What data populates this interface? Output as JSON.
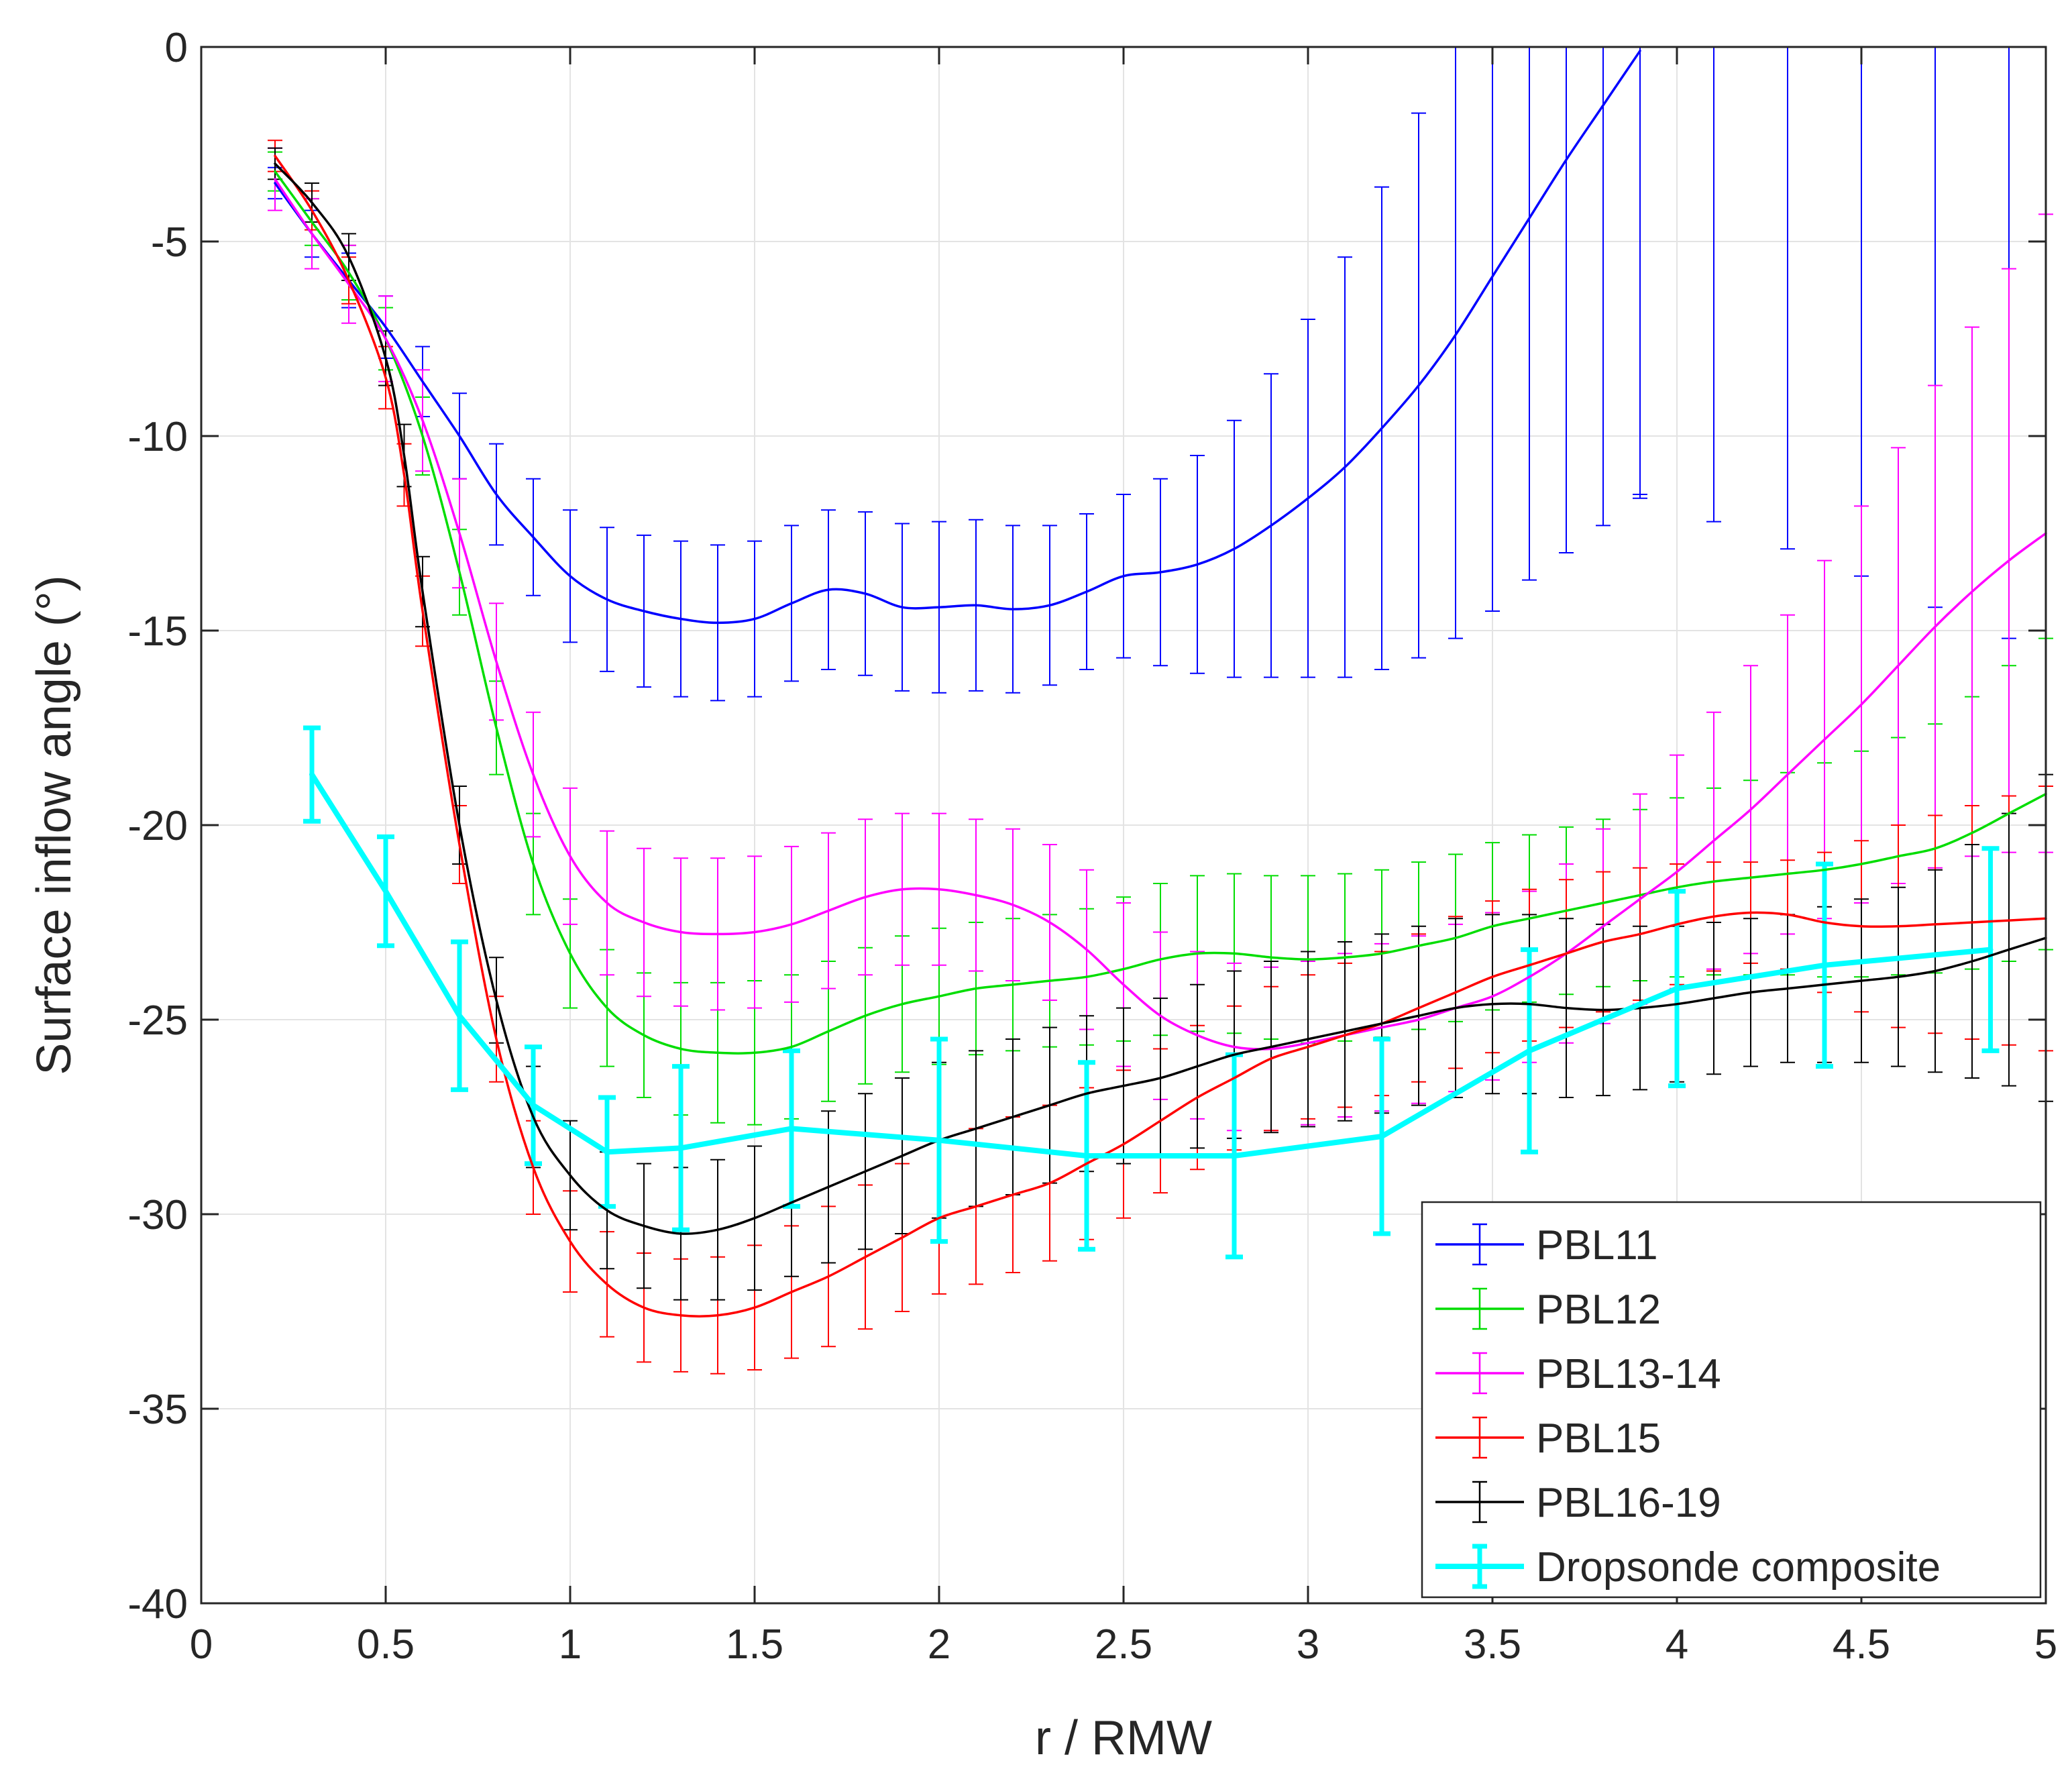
{
  "chart_data": {
    "type": "line",
    "title": "",
    "xlabel": "r / RMW",
    "ylabel": "Surface inflow angle (°)",
    "xlim": [
      0,
      5
    ],
    "ylim": [
      -40,
      0
    ],
    "xticks": [
      0,
      0.5,
      1,
      1.5,
      2,
      2.5,
      3,
      3.5,
      4,
      4.5,
      5
    ],
    "yticks": [
      0,
      -5,
      -10,
      -15,
      -20,
      -25,
      -30,
      -35,
      -40
    ],
    "xtick_labels": [
      "0",
      "0.5",
      "1",
      "1.5",
      "2",
      "2.5",
      "3",
      "3.5",
      "4",
      "4.5",
      "5"
    ],
    "ytick_labels": [
      "0",
      "-5",
      "-10",
      "-15",
      "-20",
      "-25",
      "-30",
      "-35",
      "-40"
    ],
    "grid": true,
    "legend_position": "bottom-right",
    "series": [
      {
        "name": "PBL11",
        "color": "#0000ff",
        "x": [
          0.2,
          0.3,
          0.4,
          0.5,
          0.6,
          0.7,
          0.8,
          0.9,
          1.0,
          1.1,
          1.2,
          1.3,
          1.4,
          1.5,
          1.6,
          1.7,
          1.8,
          1.9,
          2.0,
          2.1,
          2.2,
          2.3,
          2.4,
          2.5,
          2.6,
          2.7,
          2.8,
          2.9,
          3.0,
          3.1,
          3.2,
          3.3,
          3.4,
          3.5,
          3.6,
          3.7,
          3.8,
          3.9
        ],
        "y": [
          -3.5,
          -4.8,
          -6.0,
          -7.2,
          -8.6,
          -10.0,
          -11.5,
          -12.6,
          -13.6,
          -14.2,
          -14.5,
          -14.7,
          -14.8,
          -14.7,
          -14.3,
          -13.95,
          -14.05,
          -14.4,
          -14.4,
          -14.35,
          -14.45,
          -14.35,
          -14.0,
          -13.6,
          -13.5,
          -13.3,
          -12.9,
          -12.3,
          -11.6,
          -10.8,
          -9.8,
          -8.7,
          -7.4,
          -5.9,
          -4.4,
          -2.9,
          -1.5,
          -0.1
        ],
        "err": [
          0.4,
          0.6,
          0.7,
          0.8,
          0.9,
          1.1,
          1.3,
          1.5,
          1.7,
          1.85,
          1.95,
          2.0,
          2.0,
          2.0,
          2.0,
          2.05,
          2.1,
          2.15,
          2.2,
          2.2,
          2.15,
          2.05,
          2.0,
          2.1,
          2.4,
          2.8,
          3.3,
          3.9,
          4.6,
          5.4,
          6.2,
          7.0,
          7.8,
          8.6,
          9.3,
          10.1,
          10.8,
          11.5
        ],
        "ext_x": [
          3.9,
          4.1,
          4.3,
          4.5,
          4.7,
          4.9
        ],
        "ext_err": [
          11.5,
          12.2,
          12.9,
          13.6,
          14.4,
          15.2
        ]
      },
      {
        "name": "PBL12",
        "color": "#00dd00",
        "x": [
          0.2,
          0.3,
          0.4,
          0.5,
          0.6,
          0.7,
          0.8,
          0.9,
          1.0,
          1.1,
          1.2,
          1.3,
          1.4,
          1.5,
          1.6,
          1.7,
          1.8,
          1.9,
          2.0,
          2.1,
          2.2,
          2.3,
          2.4,
          2.5,
          2.6,
          2.7,
          2.8,
          2.9,
          3.0,
          3.1,
          3.2,
          3.3,
          3.4,
          3.5,
          3.6,
          3.7,
          3.8,
          3.9,
          4.0,
          4.1,
          4.2,
          4.3,
          4.4,
          4.5,
          4.6,
          4.7,
          4.8,
          4.9,
          5.0
        ],
        "y": [
          -3.2,
          -4.5,
          -5.8,
          -7.5,
          -10.0,
          -13.5,
          -17.5,
          -21.0,
          -23.3,
          -24.7,
          -25.4,
          -25.75,
          -25.85,
          -25.85,
          -25.7,
          -25.3,
          -24.9,
          -24.6,
          -24.4,
          -24.2,
          -24.1,
          -24.0,
          -23.9,
          -23.7,
          -23.45,
          -23.3,
          -23.3,
          -23.4,
          -23.45,
          -23.4,
          -23.3,
          -23.1,
          -22.9,
          -22.6,
          -22.4,
          -22.2,
          -22.0,
          -21.8,
          -21.6,
          -21.45,
          -21.35,
          -21.25,
          -21.15,
          -21.0,
          -20.8,
          -20.6,
          -20.2,
          -19.7,
          -19.2
        ],
        "err": [
          0.5,
          0.6,
          0.7,
          0.8,
          1.0,
          1.1,
          1.2,
          1.3,
          1.4,
          1.5,
          1.6,
          1.7,
          1.8,
          1.85,
          1.85,
          1.8,
          1.75,
          1.75,
          1.75,
          1.7,
          1.7,
          1.7,
          1.75,
          1.85,
          1.95,
          2.0,
          2.05,
          2.1,
          2.15,
          2.15,
          2.15,
          2.15,
          2.15,
          2.15,
          2.15,
          2.15,
          2.15,
          2.2,
          2.3,
          2.4,
          2.5,
          2.6,
          2.75,
          2.9,
          3.05,
          3.2,
          3.5,
          3.8,
          4.0
        ]
      },
      {
        "name": "PBL13-14",
        "color": "#ff00ff",
        "x": [
          0.2,
          0.3,
          0.4,
          0.5,
          0.6,
          0.7,
          0.8,
          0.9,
          1.0,
          1.1,
          1.2,
          1.3,
          1.4,
          1.5,
          1.6,
          1.7,
          1.8,
          1.9,
          2.0,
          2.1,
          2.2,
          2.3,
          2.4,
          2.5,
          2.6,
          2.7,
          2.8,
          2.9,
          3.0,
          3.1,
          3.2,
          3.3,
          3.4,
          3.5,
          3.6,
          3.7,
          3.8,
          3.9,
          4.0,
          4.1,
          4.2,
          4.3,
          4.4,
          4.5,
          4.6,
          4.7,
          4.8,
          4.9,
          5.0
        ],
        "y": [
          -3.4,
          -4.8,
          -6.1,
          -7.5,
          -9.6,
          -12.5,
          -15.8,
          -18.7,
          -20.8,
          -22.0,
          -22.5,
          -22.75,
          -22.8,
          -22.75,
          -22.55,
          -22.2,
          -21.85,
          -21.65,
          -21.65,
          -21.8,
          -22.05,
          -22.5,
          -23.2,
          -24.1,
          -24.9,
          -25.4,
          -25.7,
          -25.75,
          -25.6,
          -25.4,
          -25.2,
          -25.0,
          -24.7,
          -24.4,
          -23.9,
          -23.3,
          -22.6,
          -21.9,
          -21.2,
          -20.4,
          -19.6,
          -18.7,
          -17.8,
          -16.9,
          -15.9,
          -14.9,
          -14.0,
          -13.2,
          -12.5
        ],
        "err": [
          0.8,
          0.9,
          1.0,
          1.1,
          1.3,
          1.4,
          1.5,
          1.6,
          1.75,
          1.85,
          1.9,
          1.9,
          1.95,
          1.95,
          2.0,
          2.0,
          2.0,
          1.95,
          1.95,
          1.95,
          1.95,
          2.0,
          2.05,
          2.1,
          2.15,
          2.15,
          2.15,
          2.1,
          2.1,
          2.1,
          2.15,
          2.15,
          2.15,
          2.15,
          2.2,
          2.3,
          2.5,
          2.7,
          3.0,
          3.3,
          3.7,
          4.1,
          4.6,
          5.1,
          5.6,
          6.2,
          6.8,
          7.5,
          8.2
        ]
      },
      {
        "name": "PBL15",
        "color": "#ff0000",
        "x": [
          0.2,
          0.3,
          0.4,
          0.5,
          0.55,
          0.6,
          0.7,
          0.8,
          0.9,
          1.0,
          1.1,
          1.2,
          1.3,
          1.4,
          1.5,
          1.6,
          1.7,
          1.8,
          1.9,
          2.0,
          2.1,
          2.2,
          2.3,
          2.4,
          2.5,
          2.6,
          2.7,
          2.8,
          2.9,
          3.0,
          3.1,
          3.2,
          3.3,
          3.4,
          3.5,
          3.6,
          3.7,
          3.8,
          3.9,
          4.0,
          4.1,
          4.2,
          4.3,
          4.4,
          4.5,
          4.6,
          4.7,
          4.8,
          4.9,
          5.0
        ],
        "y": [
          -2.8,
          -4.2,
          -6.0,
          -8.5,
          -11.0,
          -14.5,
          -20.5,
          -25.5,
          -28.8,
          -30.7,
          -31.8,
          -32.4,
          -32.6,
          -32.6,
          -32.4,
          -32.0,
          -31.6,
          -31.1,
          -30.6,
          -30.1,
          -29.8,
          -29.5,
          -29.2,
          -28.7,
          -28.2,
          -27.6,
          -27.0,
          -26.5,
          -26.0,
          -25.7,
          -25.4,
          -25.1,
          -24.7,
          -24.3,
          -23.9,
          -23.6,
          -23.3,
          -23.0,
          -22.8,
          -22.55,
          -22.35,
          -22.25,
          -22.3,
          -22.5,
          -22.6,
          -22.6,
          -22.55,
          -22.5,
          -22.45,
          -22.4
        ],
        "err": [
          0.4,
          0.5,
          0.6,
          0.8,
          0.8,
          0.9,
          1.0,
          1.1,
          1.2,
          1.3,
          1.35,
          1.4,
          1.45,
          1.5,
          1.6,
          1.7,
          1.8,
          1.85,
          1.9,
          1.95,
          2.0,
          2.0,
          2.0,
          1.95,
          1.9,
          1.85,
          1.85,
          1.85,
          1.85,
          1.85,
          1.85,
          1.85,
          1.9,
          1.95,
          1.95,
          1.95,
          1.9,
          1.8,
          1.7,
          1.55,
          1.4,
          1.3,
          1.4,
          1.8,
          2.2,
          2.6,
          2.8,
          3.0,
          3.2,
          3.4
        ]
      },
      {
        "name": "PBL16-19",
        "color": "#000000",
        "x": [
          0.2,
          0.3,
          0.4,
          0.5,
          0.55,
          0.6,
          0.7,
          0.8,
          0.9,
          1.0,
          1.1,
          1.2,
          1.3,
          1.4,
          1.5,
          1.6,
          1.7,
          1.8,
          1.9,
          2.0,
          2.1,
          2.2,
          2.3,
          2.4,
          2.5,
          2.6,
          2.7,
          2.8,
          2.9,
          3.0,
          3.1,
          3.2,
          3.3,
          3.4,
          3.5,
          3.6,
          3.7,
          3.8,
          3.9,
          4.0,
          4.1,
          4.2,
          4.3,
          4.4,
          4.5,
          4.6,
          4.7,
          4.8,
          4.9,
          5.0
        ],
        "y": [
          -3.0,
          -4.0,
          -5.4,
          -8.0,
          -10.5,
          -14.0,
          -20.0,
          -24.5,
          -27.5,
          -29.0,
          -29.9,
          -30.3,
          -30.5,
          -30.4,
          -30.1,
          -29.7,
          -29.3,
          -28.9,
          -28.5,
          -28.1,
          -27.8,
          -27.5,
          -27.2,
          -26.9,
          -26.7,
          -26.5,
          -26.2,
          -25.9,
          -25.7,
          -25.5,
          -25.3,
          -25.1,
          -24.9,
          -24.7,
          -24.6,
          -24.6,
          -24.7,
          -24.75,
          -24.7,
          -24.6,
          -24.45,
          -24.3,
          -24.2,
          -24.1,
          -24.0,
          -23.9,
          -23.75,
          -23.5,
          -23.2,
          -22.9
        ],
        "err": [
          0.4,
          0.5,
          0.6,
          0.7,
          0.8,
          0.9,
          1.0,
          1.1,
          1.3,
          1.4,
          1.5,
          1.6,
          1.7,
          1.8,
          1.85,
          1.9,
          1.95,
          2.0,
          2.0,
          2.0,
          2.0,
          2.0,
          2.0,
          2.0,
          2.0,
          2.05,
          2.1,
          2.15,
          2.2,
          2.25,
          2.3,
          2.3,
          2.3,
          2.3,
          2.3,
          2.3,
          2.3,
          2.2,
          2.1,
          2.0,
          1.95,
          1.9,
          1.9,
          2.0,
          2.1,
          2.3,
          2.6,
          3.0,
          3.5,
          4.2
        ]
      },
      {
        "name": "Dropsonde composite",
        "color": "#00ffff",
        "x": [
          0.3,
          0.5,
          0.7,
          0.9,
          1.1,
          1.3,
          1.6,
          2.0,
          2.4,
          2.8,
          3.2,
          3.6,
          4.0,
          4.4,
          4.85
        ],
        "y": [
          -18.7,
          -21.7,
          -24.9,
          -27.2,
          -28.4,
          -28.3,
          -27.8,
          -28.1,
          -28.5,
          -28.5,
          -28.0,
          -25.8,
          -24.2,
          -23.6,
          -23.2
        ],
        "err": [
          1.2,
          1.4,
          1.9,
          1.5,
          1.4,
          2.1,
          2.0,
          2.6,
          2.4,
          2.6,
          2.5,
          2.6,
          2.5,
          2.6,
          2.6
        ]
      }
    ]
  }
}
